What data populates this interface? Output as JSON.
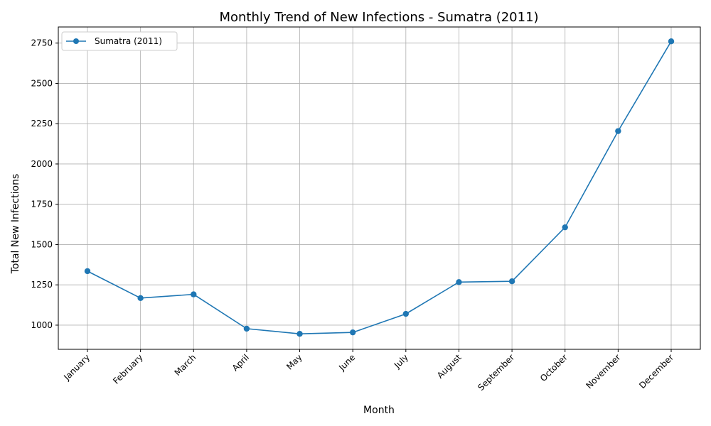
{
  "chart_data": {
    "type": "line",
    "title": "Monthly Trend of New Infections - Sumatra (2011)",
    "xlabel": "Month",
    "ylabel": "Total New Infections",
    "categories": [
      "January",
      "February",
      "March",
      "April",
      "May",
      "June",
      "July",
      "August",
      "September",
      "October",
      "November",
      "December"
    ],
    "series": [
      {
        "name": "Sumatra (2011)",
        "values": [
          1335,
          1168,
          1191,
          978,
          946,
          955,
          1070,
          1267,
          1272,
          1607,
          2204,
          2761
        ]
      }
    ],
    "ylim": [
      850,
      2850
    ],
    "yticks": [
      "1000",
      "1250",
      "1500",
      "1750",
      "2000",
      "2250",
      "2500",
      "2750"
    ],
    "grid": true,
    "legend_position": "top-left",
    "colors": {
      "series": "#1f77b4",
      "grid": "#b0b0b0"
    }
  }
}
